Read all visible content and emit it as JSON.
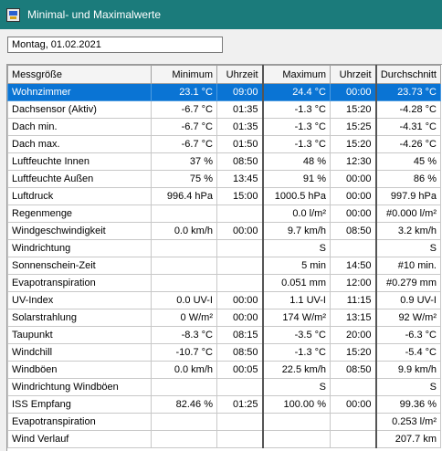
{
  "window": {
    "title": "Minimal- und Maximalwerte"
  },
  "date_field": {
    "value": "Montag, 01.02.2021"
  },
  "table": {
    "columns": [
      "Messgröße",
      "Minimum",
      "Uhrzeit",
      "Maximum",
      "Uhrzeit",
      "Durchschnitt"
    ],
    "rows": [
      [
        "Wohnzimmer",
        "23.1 °C",
        "09:00",
        "24.4 °C",
        "00:00",
        "23.73 °C"
      ],
      [
        "Dachsensor (Aktiv)",
        "-6.7 °C",
        "01:35",
        "-1.3 °C",
        "15:20",
        "-4.28 °C"
      ],
      [
        "Dach min.",
        "-6.7 °C",
        "01:35",
        "-1.3 °C",
        "15:25",
        "-4.31 °C"
      ],
      [
        "Dach max.",
        "-6.7 °C",
        "01:50",
        "-1.3 °C",
        "15:20",
        "-4.26 °C"
      ],
      [
        "Luftfeuchte Innen",
        "37 %",
        "08:50",
        "48 %",
        "12:30",
        "45 %"
      ],
      [
        "Luftfeuchte Außen",
        "75 %",
        "13:45",
        "91 %",
        "00:00",
        "86 %"
      ],
      [
        "Luftdruck",
        "996.4 hPa",
        "15:00",
        "1000.5 hPa",
        "00:00",
        "997.9 hPa"
      ],
      [
        "Regenmenge",
        "",
        "",
        "0.0 l/m²",
        "00:00",
        "#0.000 l/m²"
      ],
      [
        "Windgeschwindigkeit",
        "0.0 km/h",
        "00:00",
        "9.7 km/h",
        "08:50",
        "3.2 km/h"
      ],
      [
        "Windrichtung",
        "",
        "",
        "S",
        "",
        "S"
      ],
      [
        "Sonnenschein-Zeit",
        "",
        "",
        "5 min",
        "14:50",
        "#10 min."
      ],
      [
        "Evapotranspiration",
        "",
        "",
        "0.051 mm",
        "12:00",
        "#0.279 mm"
      ],
      [
        "UV-Index",
        "0.0 UV-I",
        "00:00",
        "1.1 UV-I",
        "11:15",
        "0.9 UV-I"
      ],
      [
        "Solarstrahlung",
        "0 W/m²",
        "00:00",
        "174 W/m²",
        "13:15",
        "92 W/m²"
      ],
      [
        "Taupunkt",
        "-8.3 °C",
        "08:15",
        "-3.5 °C",
        "20:00",
        "-6.3 °C"
      ],
      [
        "Windchill",
        "-10.7 °C",
        "08:50",
        "-1.3 °C",
        "15:20",
        "-5.4 °C"
      ],
      [
        "Windböen",
        "0.0 km/h",
        "00:05",
        "22.5 km/h",
        "08:50",
        "9.9 km/h"
      ],
      [
        "Windrichtung Windböen",
        "",
        "",
        "S",
        "",
        "S"
      ],
      [
        "ISS Empfang",
        "82.46 %",
        "01:25",
        "100.00 %",
        "00:00",
        "99.36 %"
      ],
      [
        "Evapotranspiration",
        "",
        "",
        "",
        "",
        "0.253 l/m²"
      ],
      [
        "Wind Verlauf",
        "",
        "",
        "",
        "",
        "207.7 km"
      ]
    ],
    "selected_row": 0
  },
  "colors": {
    "titlebar": "#1b7b7b",
    "selection": "#0a74d4"
  }
}
